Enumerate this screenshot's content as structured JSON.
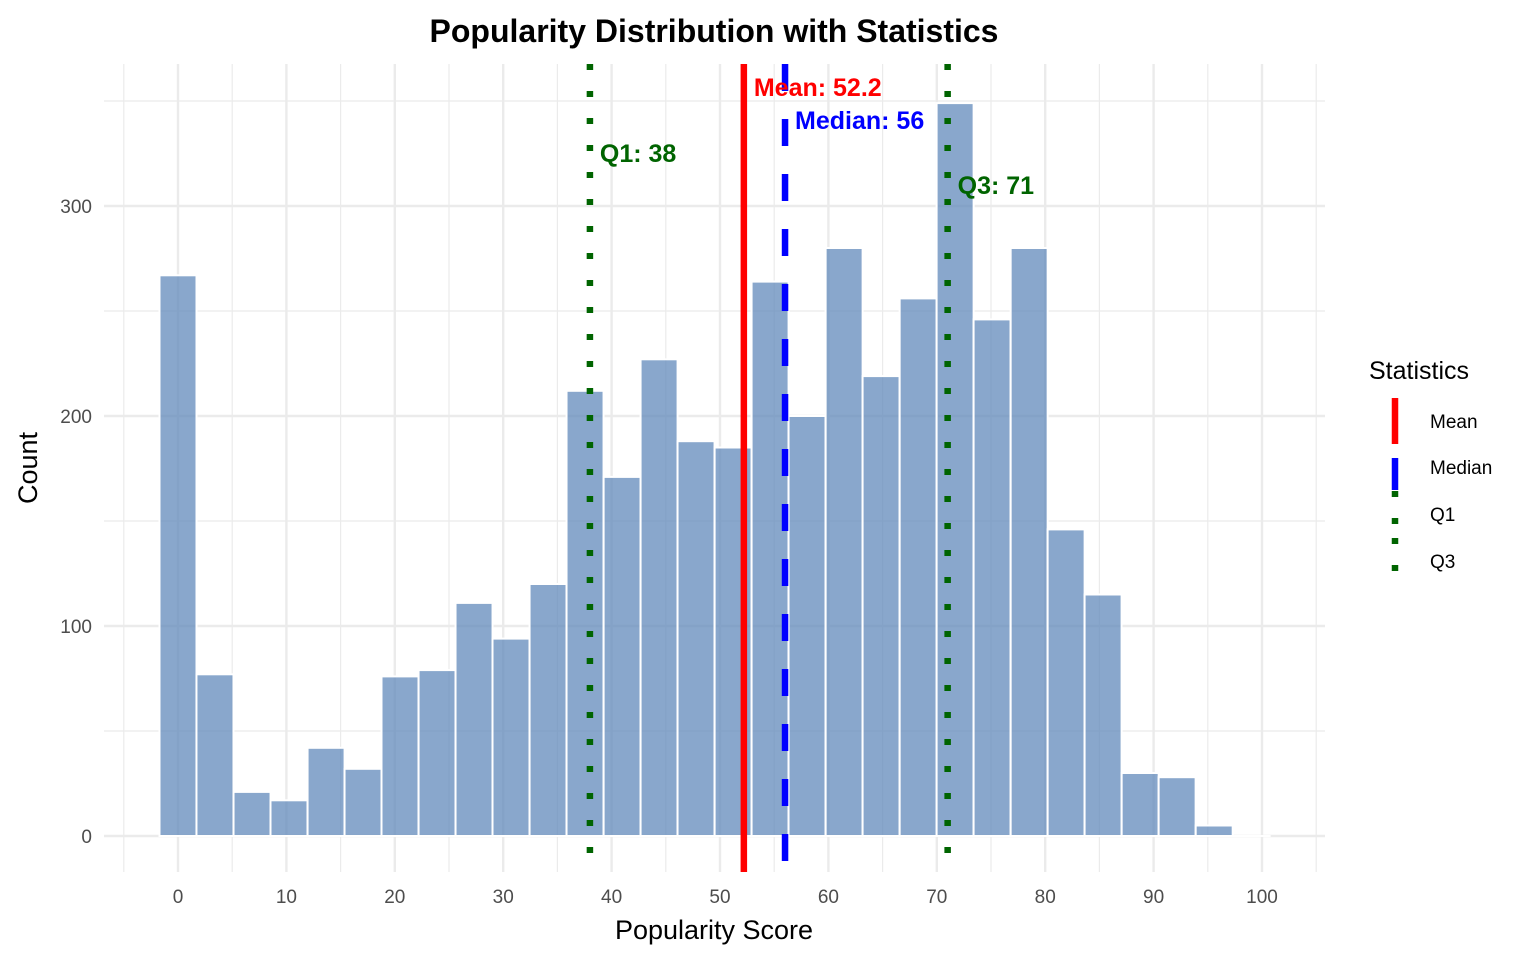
{
  "chart_data": {
    "type": "bar",
    "subtype": "histogram",
    "title": "Popularity Distribution with Statistics",
    "xlabel": "Popularity Score",
    "ylabel": "Count",
    "xlim": [
      -5.5,
      106.6
    ],
    "ylim": [
      -16,
      368
    ],
    "x_ticks": [
      0,
      10,
      20,
      30,
      40,
      50,
      60,
      70,
      80,
      90,
      100
    ],
    "x_tick_labels": [
      "0",
      "10",
      "20",
      "30",
      "40",
      "50",
      "60",
      "70",
      "80",
      "90",
      "100"
    ],
    "y_ticks": [
      0,
      100,
      200,
      300
    ],
    "y_tick_labels": [
      "0",
      "100",
      "200",
      "300"
    ],
    "grid": true,
    "bin_width": 3.414,
    "bin_centers": [
      0,
      3.41,
      6.83,
      10.24,
      13.66,
      17.07,
      20.48,
      23.9,
      27.31,
      30.72,
      34.14,
      37.55,
      40.97,
      44.38,
      47.79,
      51.21,
      54.62,
      58.03,
      61.45,
      64.86,
      68.28,
      71.69,
      75.1,
      78.52,
      81.93,
      85.34,
      88.76,
      92.17,
      95.59,
      99
    ],
    "values": [
      267,
      77,
      21,
      17,
      42,
      32,
      76,
      79,
      111,
      94,
      120,
      212,
      171,
      227,
      188,
      185,
      264,
      200,
      280,
      219,
      256,
      349,
      246,
      280,
      146,
      115,
      30,
      28,
      5,
      0
    ],
    "bar_color": "#5B85B8",
    "statistics": [
      {
        "name": "Mean",
        "value": 52.2,
        "label": "Mean: 52.2",
        "color": "#FF0000",
        "linetype": "solid"
      },
      {
        "name": "Median",
        "value": 56,
        "label": "Median: 56",
        "color": "#0000FF",
        "linetype": "dashed"
      },
      {
        "name": "Q1",
        "value": 38,
        "label": "Q1: 38",
        "color": "#006400",
        "linetype": "dotted"
      },
      {
        "name": "Q3",
        "value": 71,
        "label": "Q3: 71",
        "color": "#006400",
        "linetype": "dotted"
      }
    ],
    "legend": {
      "title": "Statistics",
      "position": "right",
      "entries": [
        "Mean",
        "Median",
        "Q1",
        "Q3"
      ]
    }
  }
}
